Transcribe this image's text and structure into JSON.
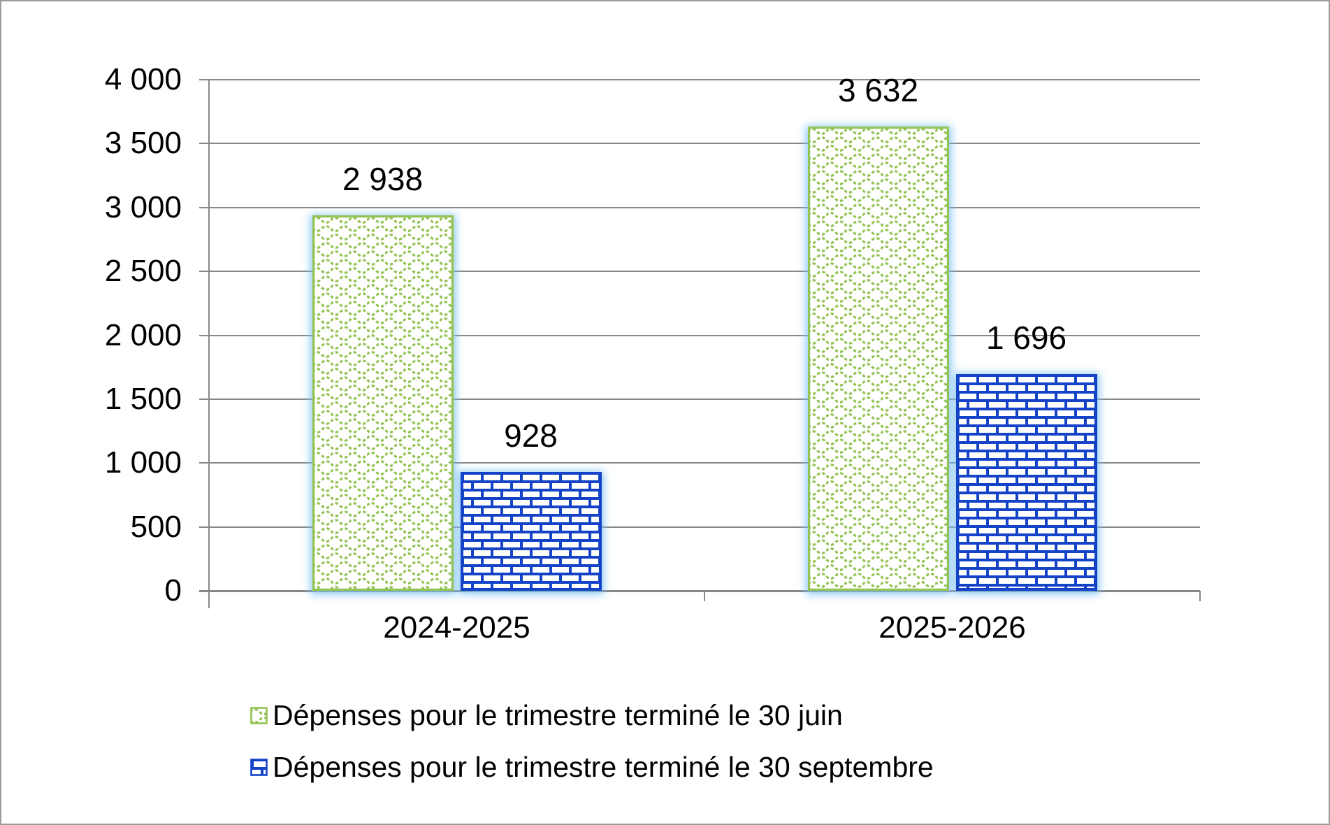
{
  "chart_data": {
    "type": "bar",
    "title": "",
    "categories": [
      "2024-2025",
      "2025-2026"
    ],
    "series": [
      {
        "name": "Dépenses pour le trimestre terminé le 30 juin",
        "values": [
          2938,
          3632
        ],
        "value_labels": [
          "2 938",
          "3 632"
        ],
        "color": "#92c353",
        "pattern": "wave-scale",
        "pattern_id": "patWave"
      },
      {
        "name": "Dépenses pour le trimestre terminé le 30 septembre",
        "values": [
          928,
          1696
        ],
        "value_labels": [
          "928",
          "1 696"
        ],
        "color": "#1543c8",
        "pattern": "brick",
        "pattern_id": "patBrick"
      }
    ],
    "y_axis": {
      "min": 0,
      "max": 4000,
      "step": 500,
      "tick_labels": [
        "0",
        "500",
        "1 000",
        "1 500",
        "2 000",
        "2 500",
        "3 000",
        "3 500",
        "4 000"
      ]
    },
    "x_axis": {
      "tick_labels": [
        "2024-2025",
        "2025-2026"
      ]
    },
    "grid": true,
    "legend_position": "bottom-left",
    "colors": {
      "gridline": "#878787",
      "axis": "#878787",
      "text": "#000000",
      "glow": "#7ac0f2",
      "frame_border": "#9b9b9b",
      "background": "#ffffff"
    }
  }
}
